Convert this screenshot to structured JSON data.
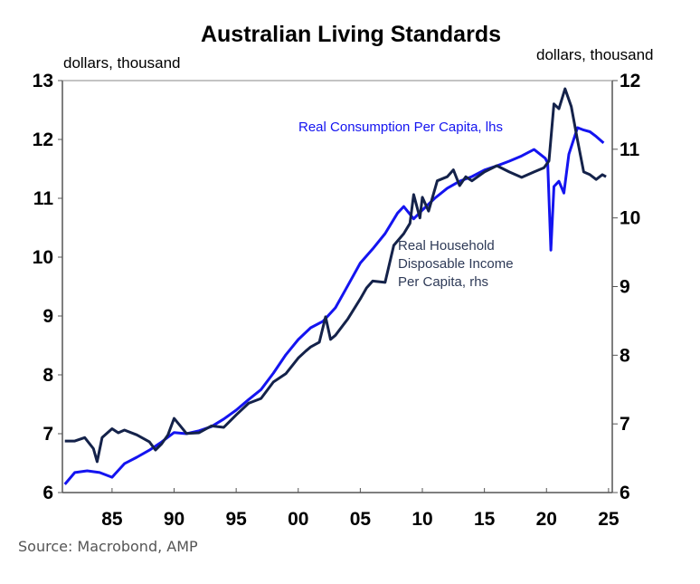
{
  "chart_data": {
    "type": "line",
    "title": "Australian Living Standards",
    "left_axis": {
      "unit_label": "dollars, thousand",
      "ylim": [
        6,
        13
      ],
      "ticks": [
        "6",
        "7",
        "8",
        "9",
        "10",
        "11",
        "12",
        "13"
      ]
    },
    "right_axis": {
      "unit_label": "dollars, thousand",
      "ylim": [
        6,
        12
      ],
      "ticks": [
        "6",
        "7",
        "8",
        "9",
        "10",
        "11",
        "12"
      ]
    },
    "x_axis": {
      "xlim": [
        1981,
        2025.3
      ],
      "ticks": [
        1985,
        1990,
        1995,
        2000,
        2005,
        2010,
        2015,
        2020,
        2025
      ],
      "tick_labels": [
        "85",
        "90",
        "95",
        "00",
        "05",
        "10",
        "15",
        "20",
        "25"
      ]
    },
    "grid": false,
    "series": [
      {
        "name": "Real Consumption Per Capita, lhs",
        "axis": "left",
        "color": "#1414f0",
        "points": [
          [
            1981.2,
            6.14
          ],
          [
            1982,
            6.34
          ],
          [
            1983,
            6.37
          ],
          [
            1984,
            6.34
          ],
          [
            1985,
            6.26
          ],
          [
            1986,
            6.49
          ],
          [
            1987,
            6.6
          ],
          [
            1988,
            6.72
          ],
          [
            1989,
            6.86
          ],
          [
            1990,
            7.02
          ],
          [
            1991,
            7.0
          ],
          [
            1992,
            7.05
          ],
          [
            1993,
            7.12
          ],
          [
            1994,
            7.25
          ],
          [
            1995,
            7.4
          ],
          [
            1996,
            7.58
          ],
          [
            1997,
            7.75
          ],
          [
            1998,
            8.03
          ],
          [
            1999,
            8.34
          ],
          [
            2000,
            8.6
          ],
          [
            2001,
            8.8
          ],
          [
            2002,
            8.91
          ],
          [
            2003,
            9.14
          ],
          [
            2004,
            9.52
          ],
          [
            2005,
            9.9
          ],
          [
            2006,
            10.14
          ],
          [
            2007,
            10.4
          ],
          [
            2008,
            10.75
          ],
          [
            2008.5,
            10.86
          ],
          [
            2009.3,
            10.65
          ],
          [
            2010,
            10.8
          ],
          [
            2011,
            11.0
          ],
          [
            2012,
            11.17
          ],
          [
            2013,
            11.29
          ],
          [
            2014,
            11.37
          ],
          [
            2015,
            11.48
          ],
          [
            2016,
            11.55
          ],
          [
            2017,
            11.63
          ],
          [
            2018,
            11.72
          ],
          [
            2019,
            11.83
          ],
          [
            2019.9,
            11.68
          ],
          [
            2020.1,
            11.6
          ],
          [
            2020.35,
            10.12
          ],
          [
            2020.6,
            11.2
          ],
          [
            2021,
            11.29
          ],
          [
            2021.4,
            11.09
          ],
          [
            2021.8,
            11.75
          ],
          [
            2022.5,
            12.2
          ],
          [
            2023,
            12.16
          ],
          [
            2023.5,
            12.13
          ],
          [
            2024,
            12.05
          ],
          [
            2024.6,
            11.94
          ]
        ]
      },
      {
        "name": "Real Household Disposable Income Per Capita, rhs",
        "axis": "right",
        "color": "#14224a",
        "points": [
          [
            1981.2,
            6.75
          ],
          [
            1982,
            6.75
          ],
          [
            1982.8,
            6.8
          ],
          [
            1983.5,
            6.64
          ],
          [
            1983.8,
            6.45
          ],
          [
            1984.2,
            6.8
          ],
          [
            1985,
            6.93
          ],
          [
            1985.5,
            6.87
          ],
          [
            1986,
            6.91
          ],
          [
            1987,
            6.84
          ],
          [
            1988,
            6.74
          ],
          [
            1988.5,
            6.62
          ],
          [
            1989,
            6.71
          ],
          [
            1989.5,
            6.84
          ],
          [
            1990,
            7.08
          ],
          [
            1990.5,
            6.97
          ],
          [
            1991,
            6.86
          ],
          [
            1992,
            6.87
          ],
          [
            1993,
            6.97
          ],
          [
            1994,
            6.95
          ],
          [
            1995,
            7.13
          ],
          [
            1996,
            7.3
          ],
          [
            1997,
            7.37
          ],
          [
            1998,
            7.61
          ],
          [
            1999,
            7.73
          ],
          [
            2000,
            7.96
          ],
          [
            2000.6,
            8.06
          ],
          [
            2001,
            8.12
          ],
          [
            2001.7,
            8.19
          ],
          [
            2002.2,
            8.56
          ],
          [
            2002.6,
            8.23
          ],
          [
            2003,
            8.29
          ],
          [
            2004,
            8.53
          ],
          [
            2005,
            8.82
          ],
          [
            2005.5,
            8.98
          ],
          [
            2006,
            9.08
          ],
          [
            2007,
            9.06
          ],
          [
            2007.7,
            9.6
          ],
          [
            2008.5,
            9.77
          ],
          [
            2009,
            9.92
          ],
          [
            2009.3,
            10.34
          ],
          [
            2009.8,
            10.0
          ],
          [
            2010,
            10.3
          ],
          [
            2010.5,
            10.1
          ],
          [
            2011.2,
            10.54
          ],
          [
            2012,
            10.6
          ],
          [
            2012.5,
            10.7
          ],
          [
            2013,
            10.47
          ],
          [
            2013.5,
            10.6
          ],
          [
            2014,
            10.54
          ],
          [
            2015,
            10.67
          ],
          [
            2016,
            10.76
          ],
          [
            2017,
            10.67
          ],
          [
            2018,
            10.59
          ],
          [
            2019,
            10.67
          ],
          [
            2019.8,
            10.73
          ],
          [
            2020.2,
            10.83
          ],
          [
            2020.6,
            11.66
          ],
          [
            2021,
            11.59
          ],
          [
            2021.5,
            11.88
          ],
          [
            2022,
            11.62
          ],
          [
            2022.5,
            11.13
          ],
          [
            2023,
            10.67
          ],
          [
            2023.5,
            10.63
          ],
          [
            2024,
            10.56
          ],
          [
            2024.5,
            10.63
          ],
          [
            2024.8,
            10.6
          ]
        ]
      }
    ],
    "annotations": [
      {
        "lines": [
          "Real Consumption Per Capita, lhs"
        ],
        "color": "#1414f0"
      },
      {
        "lines": [
          "Real Household",
          "Disposable Income",
          "Per Capita, rhs"
        ],
        "color": "#2e3a57"
      }
    ]
  },
  "source": "Source: Macrobond, AMP"
}
